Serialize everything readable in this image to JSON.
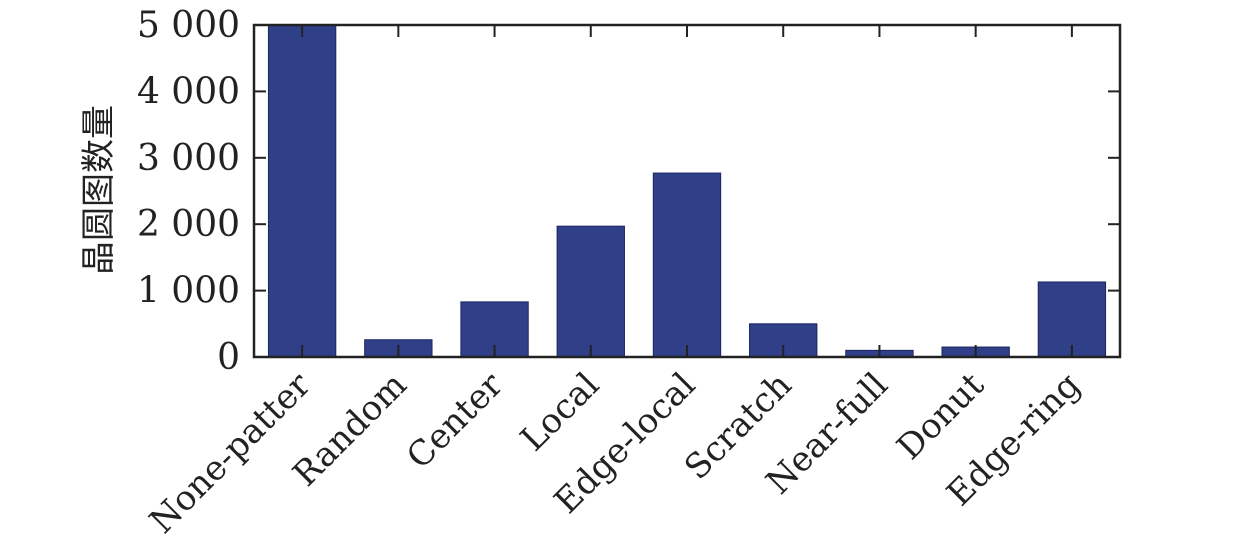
{
  "chart_data": {
    "type": "bar",
    "title": "",
    "xlabel": "",
    "ylabel": "晶圆图数量",
    "categories": [
      "None-patter",
      "Random",
      "Center",
      "Local",
      "Edge-local",
      "Scratch",
      "Near-full",
      "Donut",
      "Edge-ring"
    ],
    "values": [
      5000,
      260,
      830,
      1970,
      2770,
      500,
      100,
      150,
      1130
    ],
    "ylim": [
      0,
      5000
    ],
    "yticks": [
      0,
      1000,
      2000,
      3000,
      4000,
      5000
    ],
    "ytick_labels": [
      "0",
      "1 000",
      "2 000",
      "3 000",
      "4 000",
      "5 000"
    ],
    "grid": false,
    "legend": "none",
    "bar_color": "#2f3f88",
    "bar_edge_color": "#1c2660"
  }
}
